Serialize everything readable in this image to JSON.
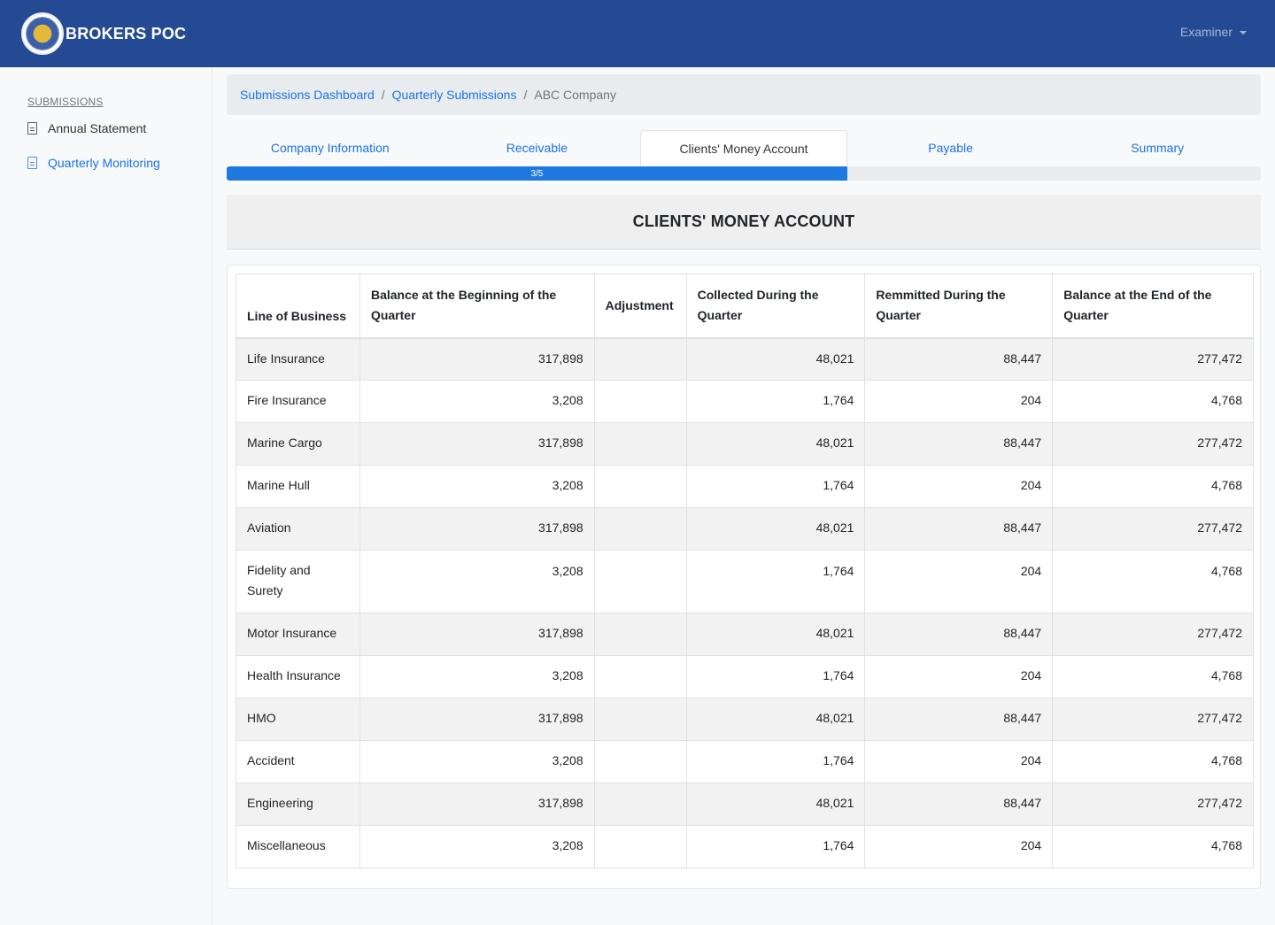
{
  "app": {
    "title": "BROKERS POC",
    "user": "Examiner"
  },
  "sidebar": {
    "heading": "SUBMISSIONS",
    "items": [
      {
        "label": "Annual Statement",
        "active": false
      },
      {
        "label": "Quarterly Monitoring",
        "active": true
      }
    ]
  },
  "breadcrumb": {
    "items": [
      "Submissions Dashboard",
      "Quarterly Submissions"
    ],
    "current": "ABC Company"
  },
  "tabs": [
    "Company Information",
    "Receivable",
    "Clients' Money Account",
    "Payable",
    "Summary"
  ],
  "active_tab": 2,
  "progress": {
    "label": "3/5",
    "fraction": 0.6
  },
  "section": {
    "title": "CLIENTS' MONEY ACCOUNT"
  },
  "table": {
    "headers": [
      "Line of Business",
      "Balance at the Beginning of the Quarter",
      "Adjustment",
      "Collected During the Quarter",
      "Remmitted During the Quarter",
      "Balance at the End of the Quarter"
    ],
    "rows": [
      {
        "line": "Life Insurance",
        "begin": "317,898",
        "adj": "",
        "collected": "48,021",
        "remitted": "88,447",
        "end": "277,472"
      },
      {
        "line": "Fire Insurance",
        "begin": "3,208",
        "adj": "",
        "collected": "1,764",
        "remitted": "204",
        "end": "4,768"
      },
      {
        "line": "Marine Cargo",
        "begin": "317,898",
        "adj": "",
        "collected": "48,021",
        "remitted": "88,447",
        "end": "277,472"
      },
      {
        "line": "Marine Hull",
        "begin": "3,208",
        "adj": "",
        "collected": "1,764",
        "remitted": "204",
        "end": "4,768"
      },
      {
        "line": "Aviation",
        "begin": "317,898",
        "adj": "",
        "collected": "48,021",
        "remitted": "88,447",
        "end": "277,472"
      },
      {
        "line": "Fidelity and Surety",
        "begin": "3,208",
        "adj": "",
        "collected": "1,764",
        "remitted": "204",
        "end": "4,768"
      },
      {
        "line": "Motor Insurance",
        "begin": "317,898",
        "adj": "",
        "collected": "48,021",
        "remitted": "88,447",
        "end": "277,472"
      },
      {
        "line": "Health Insurance",
        "begin": "3,208",
        "adj": "",
        "collected": "1,764",
        "remitted": "204",
        "end": "4,768"
      },
      {
        "line": "HMO",
        "begin": "317,898",
        "adj": "",
        "collected": "48,021",
        "remitted": "88,447",
        "end": "277,472"
      },
      {
        "line": "Accident",
        "begin": "3,208",
        "adj": "",
        "collected": "1,764",
        "remitted": "204",
        "end": "4,768"
      },
      {
        "line": "Engineering",
        "begin": "317,898",
        "adj": "",
        "collected": "48,021",
        "remitted": "88,447",
        "end": "277,472"
      },
      {
        "line": "Miscellaneous",
        "begin": "3,208",
        "adj": "",
        "collected": "1,764",
        "remitted": "204",
        "end": "4,768"
      }
    ]
  },
  "colors": {
    "navbar": "#244a94",
    "link": "#1a73e8",
    "progress": "#1f7ae0"
  }
}
